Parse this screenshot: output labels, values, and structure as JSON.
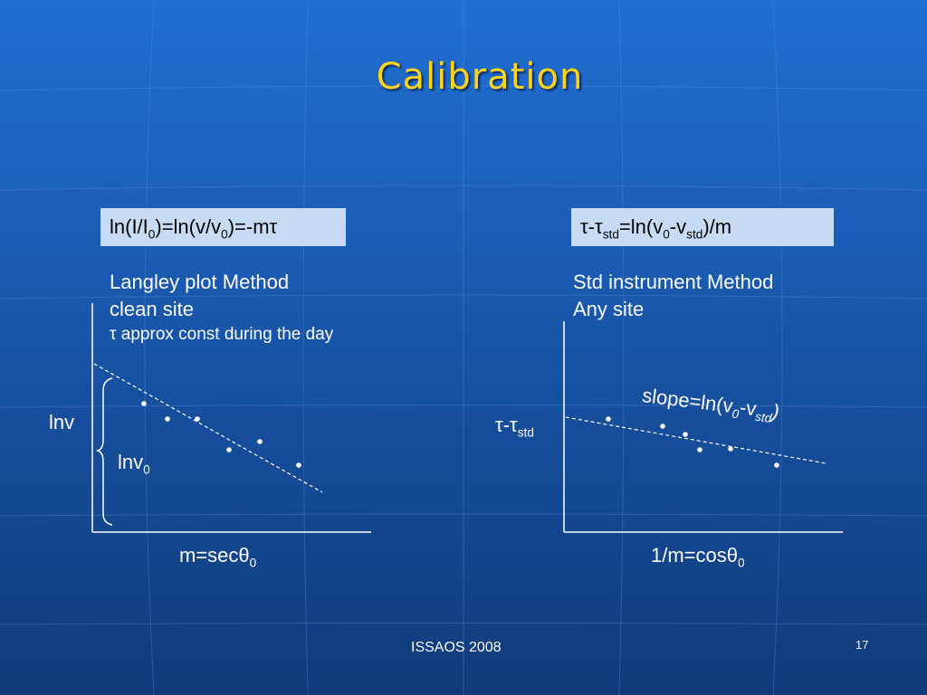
{
  "slide": {
    "title": "Calibration",
    "footer": "ISSAOS 2008",
    "page_number": "17"
  },
  "left": {
    "formula_main": "ln(I/I",
    "formula_sub1": "0",
    "formula_mid": ")=ln(v/v",
    "formula_sub2": "0",
    "formula_end": ")=-m",
    "formula_tau": "τ",
    "method": "Langley plot Method",
    "condition": "clean site",
    "note_symbol": "τ",
    "note": "approx const during the day",
    "y_label": "lnv",
    "intercept_label": "lnv",
    "intercept_sub": "0",
    "x_label": "m=secθ",
    "x_sub": "0"
  },
  "right": {
    "formula_tau1": "τ",
    "formula_dash": "-",
    "formula_tau2": "τ",
    "formula_sub1": "std",
    "formula_mid": "=ln(v",
    "formula_sub2": "0",
    "formula_mid2": "-v",
    "formula_sub3": "std",
    "formula_end": ")/m",
    "method": "Std instrument Method",
    "condition": "Any site",
    "y_label_tau1": "τ",
    "y_label_dash": "-",
    "y_label_tau2": "τ",
    "y_label_sub": "std",
    "slope_label": "slope=ln(v",
    "slope_sub1": "0",
    "slope_mid": "-v",
    "slope_sub2": "std",
    "slope_end": ")",
    "x_label": "1/m=cosθ",
    "x_sub": "0"
  },
  "colors": {
    "title": "#ffd21e",
    "formula_box": "#c7dcf4",
    "lines": "#ffffff"
  }
}
